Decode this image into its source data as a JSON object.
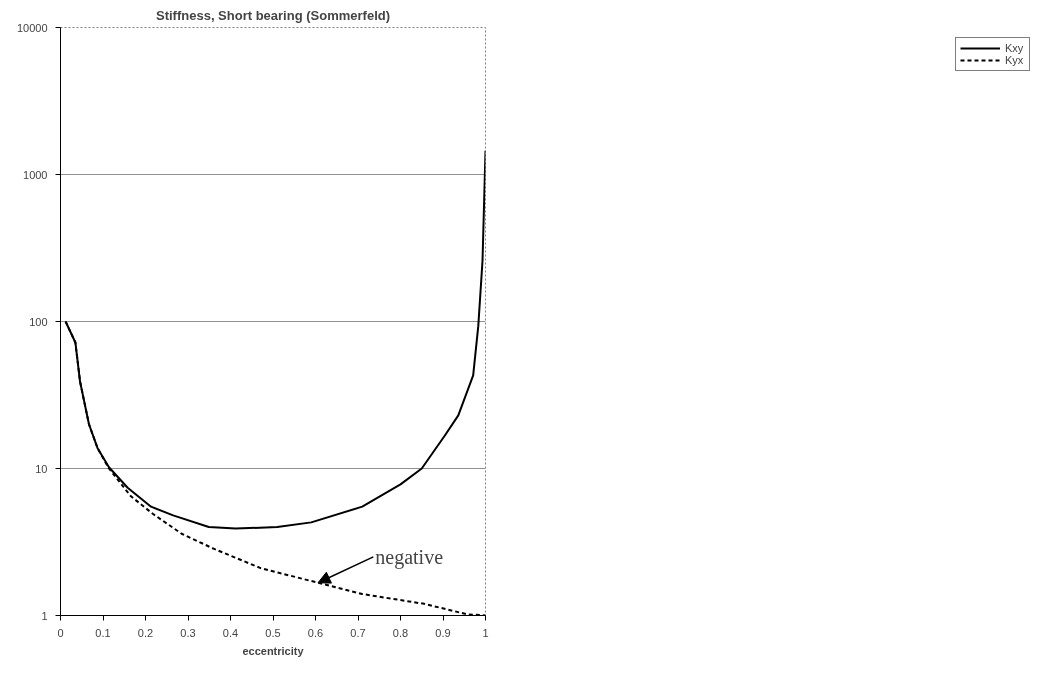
{
  "chart_data": {
    "type": "line",
    "title": "Stiffness, Short bearing (Sommerfeld)",
    "xlabel": "eccentricity",
    "log": "y",
    "xlim": [
      0,
      1
    ],
    "ylim": [
      1,
      10000
    ],
    "xticks": [
      0,
      0.1,
      0.2,
      0.3,
      0.4,
      0.5,
      0.6,
      0.7,
      0.8,
      0.9,
      1
    ],
    "yticks": [
      1,
      10,
      100,
      1000,
      10000
    ],
    "grid": "y",
    "legend": "right",
    "series": [
      {
        "name": "Kxy",
        "color": "#000000",
        "line_style": "solid",
        "x": [
          0.012,
          0.035,
          0.046,
          0.067,
          0.087,
          0.114,
          0.158,
          0.213,
          0.265,
          0.349,
          0.412,
          0.51,
          0.59,
          0.71,
          0.8,
          0.85,
          0.904,
          0.936,
          0.971,
          0.983,
          0.993,
          1.0
        ],
        "values": [
          100,
          72,
          39,
          20,
          13.8,
          10.2,
          7.4,
          5.5,
          4.8,
          4.0,
          3.9,
          4.0,
          4.3,
          5.5,
          7.8,
          10,
          16.7,
          23,
          43,
          93,
          260,
          1450
        ]
      },
      {
        "name": "Kyx",
        "color": "#000000",
        "line_style": "dashed",
        "x": [
          0.012,
          0.035,
          0.046,
          0.067,
          0.087,
          0.114,
          0.165,
          0.218,
          0.285,
          0.36,
          0.471,
          0.606,
          0.71,
          0.856,
          0.956,
          1.0
        ],
        "values": [
          100,
          72,
          39,
          20,
          13.8,
          10,
          6.5,
          4.9,
          3.6,
          2.85,
          2.1,
          1.67,
          1.4,
          1.2,
          1.02,
          1.0
        ]
      }
    ],
    "annotations": [
      {
        "text": "negative",
        "x": 0.606,
        "y": 1.67
      }
    ]
  }
}
